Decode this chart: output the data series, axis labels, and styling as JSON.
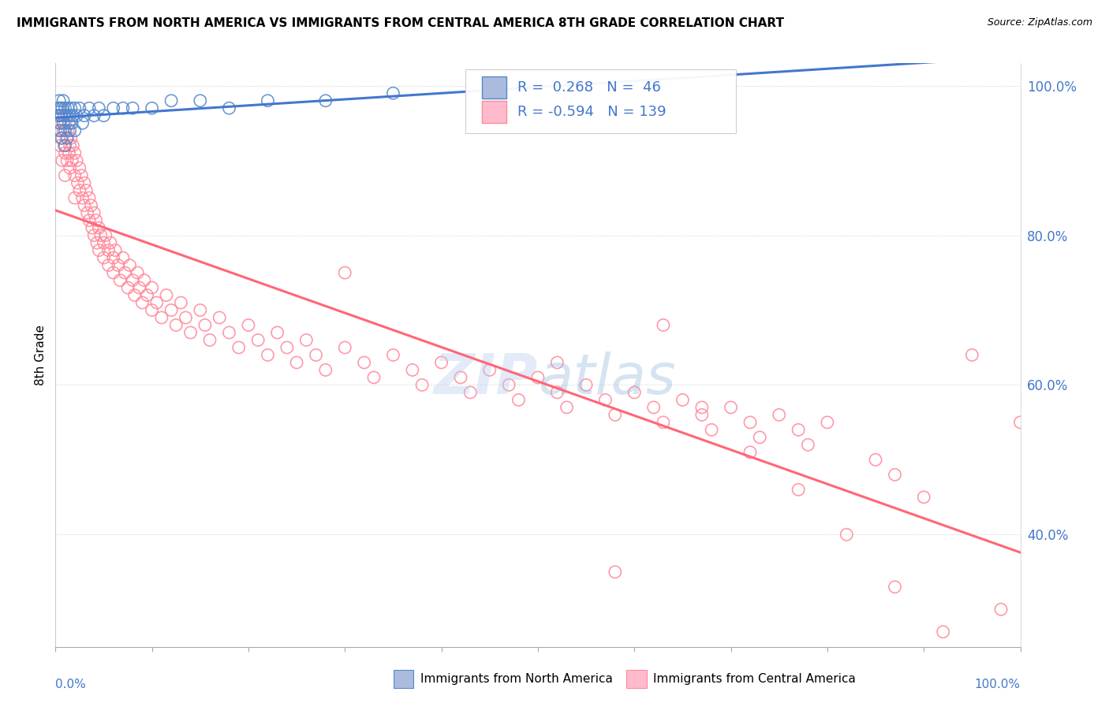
{
  "title": "IMMIGRANTS FROM NORTH AMERICA VS IMMIGRANTS FROM CENTRAL AMERICA 8TH GRADE CORRELATION CHART",
  "source": "Source: ZipAtlas.com",
  "ylabel": "8th Grade",
  "legend_label1": "Immigrants from North America",
  "legend_label2": "Immigrants from Central America",
  "R1": 0.268,
  "N1": 46,
  "R2": -0.594,
  "N2": 139,
  "color_blue_fill": "#AABBDD",
  "color_blue_edge": "#5588CC",
  "color_blue_line": "#4477CC",
  "color_pink_fill": "#FFBBCC",
  "color_pink_edge": "#FF8899",
  "color_pink_line": "#FF6677",
  "color_text_blue": "#4477CC",
  "xlim": [
    0.0,
    1.0
  ],
  "ylim": [
    0.25,
    1.03
  ],
  "yticks": [
    0.4,
    0.6,
    0.8,
    1.0
  ],
  "ytick_labels": [
    "40.0%",
    "60.0%",
    "80.0%",
    "100.0%"
  ],
  "na_x": [
    0.002,
    0.003,
    0.004,
    0.004,
    0.005,
    0.005,
    0.006,
    0.006,
    0.007,
    0.008,
    0.008,
    0.009,
    0.01,
    0.01,
    0.01,
    0.012,
    0.012,
    0.013,
    0.014,
    0.015,
    0.015,
    0.016,
    0.017,
    0.018,
    0.02,
    0.02,
    0.022,
    0.025,
    0.028,
    0.03,
    0.035,
    0.04,
    0.045,
    0.05,
    0.06,
    0.07,
    0.08,
    0.1,
    0.12,
    0.15,
    0.18,
    0.22,
    0.28,
    0.35,
    0.45,
    0.62
  ],
  "na_y": [
    0.97,
    0.96,
    0.98,
    0.95,
    0.97,
    0.94,
    0.96,
    0.93,
    0.97,
    0.98,
    0.95,
    0.96,
    0.97,
    0.94,
    0.92,
    0.96,
    0.93,
    0.97,
    0.95,
    0.96,
    0.94,
    0.97,
    0.95,
    0.96,
    0.97,
    0.94,
    0.96,
    0.97,
    0.95,
    0.96,
    0.97,
    0.96,
    0.97,
    0.96,
    0.97,
    0.97,
    0.97,
    0.97,
    0.98,
    0.98,
    0.97,
    0.98,
    0.98,
    0.99,
    0.99,
    1.0
  ],
  "ca_x": [
    0.002,
    0.003,
    0.004,
    0.005,
    0.005,
    0.006,
    0.007,
    0.007,
    0.008,
    0.009,
    0.01,
    0.01,
    0.01,
    0.012,
    0.012,
    0.013,
    0.014,
    0.015,
    0.015,
    0.016,
    0.017,
    0.018,
    0.02,
    0.02,
    0.02,
    0.022,
    0.023,
    0.025,
    0.025,
    0.027,
    0.028,
    0.03,
    0.03,
    0.032,
    0.033,
    0.035,
    0.035,
    0.037,
    0.038,
    0.04,
    0.04,
    0.042,
    0.043,
    0.045,
    0.045,
    0.047,
    0.05,
    0.05,
    0.052,
    0.055,
    0.055,
    0.057,
    0.06,
    0.06,
    0.062,
    0.065,
    0.067,
    0.07,
    0.072,
    0.075,
    0.077,
    0.08,
    0.082,
    0.085,
    0.087,
    0.09,
    0.092,
    0.095,
    0.1,
    0.1,
    0.105,
    0.11,
    0.115,
    0.12,
    0.125,
    0.13,
    0.135,
    0.14,
    0.15,
    0.155,
    0.16,
    0.17,
    0.18,
    0.19,
    0.2,
    0.21,
    0.22,
    0.23,
    0.24,
    0.25,
    0.26,
    0.27,
    0.28,
    0.3,
    0.32,
    0.33,
    0.35,
    0.37,
    0.38,
    0.4,
    0.42,
    0.43,
    0.45,
    0.47,
    0.48,
    0.5,
    0.52,
    0.53,
    0.55,
    0.57,
    0.58,
    0.6,
    0.62,
    0.63,
    0.65,
    0.67,
    0.68,
    0.7,
    0.72,
    0.73,
    0.75,
    0.77,
    0.78,
    0.8,
    0.85,
    0.87,
    0.9,
    0.52,
    0.58,
    0.63,
    0.67,
    0.72,
    0.77,
    0.82,
    0.87,
    0.92,
    0.95,
    0.98,
    1.0,
    0.3
  ],
  "ca_y": [
    0.96,
    0.94,
    0.97,
    0.95,
    0.92,
    0.96,
    0.93,
    0.9,
    0.94,
    0.92,
    0.95,
    0.91,
    0.88,
    0.93,
    0.9,
    0.94,
    0.91,
    0.92,
    0.89,
    0.93,
    0.9,
    0.92,
    0.91,
    0.88,
    0.85,
    0.9,
    0.87,
    0.89,
    0.86,
    0.88,
    0.85,
    0.87,
    0.84,
    0.86,
    0.83,
    0.85,
    0.82,
    0.84,
    0.81,
    0.83,
    0.8,
    0.82,
    0.79,
    0.81,
    0.78,
    0.8,
    0.79,
    0.77,
    0.8,
    0.78,
    0.76,
    0.79,
    0.77,
    0.75,
    0.78,
    0.76,
    0.74,
    0.77,
    0.75,
    0.73,
    0.76,
    0.74,
    0.72,
    0.75,
    0.73,
    0.71,
    0.74,
    0.72,
    0.7,
    0.73,
    0.71,
    0.69,
    0.72,
    0.7,
    0.68,
    0.71,
    0.69,
    0.67,
    0.7,
    0.68,
    0.66,
    0.69,
    0.67,
    0.65,
    0.68,
    0.66,
    0.64,
    0.67,
    0.65,
    0.63,
    0.66,
    0.64,
    0.62,
    0.65,
    0.63,
    0.61,
    0.64,
    0.62,
    0.6,
    0.63,
    0.61,
    0.59,
    0.62,
    0.6,
    0.58,
    0.61,
    0.59,
    0.57,
    0.6,
    0.58,
    0.56,
    0.59,
    0.57,
    0.55,
    0.58,
    0.56,
    0.54,
    0.57,
    0.55,
    0.53,
    0.56,
    0.54,
    0.52,
    0.55,
    0.5,
    0.48,
    0.45,
    0.63,
    0.35,
    0.68,
    0.57,
    0.51,
    0.46,
    0.4,
    0.33,
    0.27,
    0.64,
    0.3,
    0.55,
    0.75
  ]
}
